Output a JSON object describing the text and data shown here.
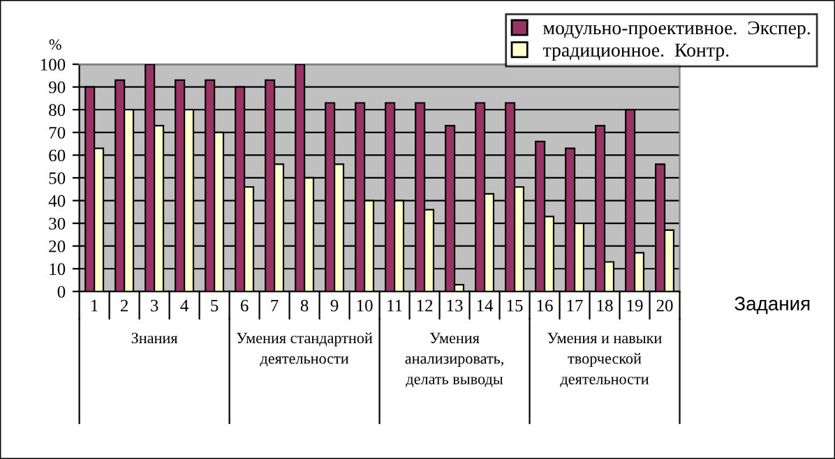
{
  "chart_data": {
    "type": "bar",
    "xlabel": "Задания",
    "ylabel": "%",
    "categories": [
      "1",
      "2",
      "3",
      "4",
      "5",
      "6",
      "7",
      "8",
      "9",
      "10",
      "11",
      "12",
      "13",
      "14",
      "15",
      "16",
      "17",
      "18",
      "19",
      "20"
    ],
    "series": [
      {
        "name": "модульно-проективное.  Экспер.",
        "color": "#993366",
        "values": [
          90,
          93,
          100,
          93,
          93,
          90,
          93,
          100,
          83,
          83,
          83,
          83,
          73,
          83,
          83,
          66,
          63,
          73,
          80,
          56
        ]
      },
      {
        "name": "традиционное.  Контр.",
        "color": "#ffffcc",
        "values": [
          63,
          80,
          73,
          80,
          70,
          46,
          56,
          50,
          56,
          40,
          40,
          36,
          3,
          43,
          46,
          33,
          30,
          13,
          17,
          27
        ]
      }
    ],
    "ylim": [
      0,
      100
    ],
    "yticks": [
      0,
      10,
      20,
      30,
      40,
      50,
      60,
      70,
      80,
      90,
      100
    ],
    "grid": "y",
    "legend": "top right",
    "annotations": [
      "Знания",
      "Умения стандартной\nдеятельности",
      "Умения\nанализировать,\nделать выводы",
      "Умения и навыки\nтворческой\nдеятельности"
    ]
  }
}
